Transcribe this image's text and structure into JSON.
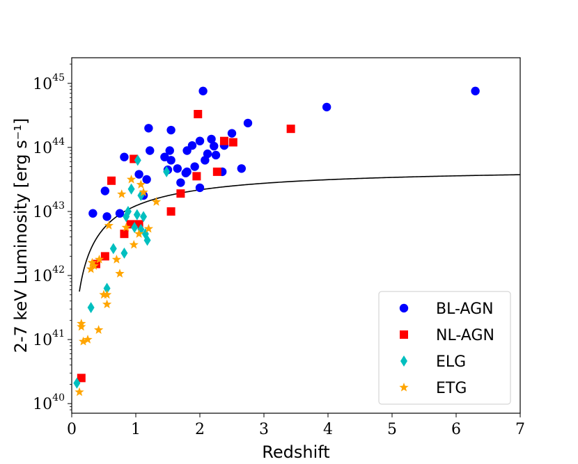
{
  "chart_data": {
    "type": "scatter",
    "title": "",
    "xlabel": "Redshift",
    "ylabel": "2-7 keV Luminosity [erg s⁻¹]",
    "xlim": [
      0,
      7
    ],
    "ylim_log10": [
      39.85,
      45.4
    ],
    "y_scale": "log",
    "x_ticks": [
      "0",
      "1",
      "2",
      "3",
      "4",
      "5",
      "6",
      "7"
    ],
    "y_ticks": [
      {
        "base": "10",
        "exp": "40",
        "log": 40
      },
      {
        "base": "10",
        "exp": "41",
        "log": 41
      },
      {
        "base": "10",
        "exp": "42",
        "log": 42
      },
      {
        "base": "10",
        "exp": "43",
        "log": 43
      },
      {
        "base": "10",
        "exp": "44",
        "log": 44
      },
      {
        "base": "10",
        "exp": "45",
        "log": 45
      }
    ],
    "legend_position": "lower-right",
    "series": [
      {
        "name": "BL-AGN",
        "marker": "circle",
        "color": "#0000ff",
        "points": [
          [
            0.33,
            42.97
          ],
          [
            0.52,
            43.32
          ],
          [
            0.55,
            42.92
          ],
          [
            0.75,
            42.97
          ],
          [
            0.82,
            43.85
          ],
          [
            1.05,
            43.58
          ],
          [
            1.12,
            43.25
          ],
          [
            1.17,
            43.5
          ],
          [
            1.2,
            44.3
          ],
          [
            1.22,
            43.95
          ],
          [
            1.45,
            43.85
          ],
          [
            1.5,
            43.65
          ],
          [
            1.53,
            43.95
          ],
          [
            1.55,
            43.8
          ],
          [
            1.55,
            44.27
          ],
          [
            1.65,
            43.67
          ],
          [
            1.7,
            43.45
          ],
          [
            1.78,
            43.6
          ],
          [
            1.8,
            43.95
          ],
          [
            1.8,
            43.62
          ],
          [
            1.88,
            44.03
          ],
          [
            1.92,
            43.7
          ],
          [
            2.0,
            43.37
          ],
          [
            2.0,
            44.1
          ],
          [
            2.05,
            44.88
          ],
          [
            2.08,
            43.8
          ],
          [
            2.12,
            43.9
          ],
          [
            2.18,
            44.13
          ],
          [
            2.22,
            44.02
          ],
          [
            2.25,
            43.88
          ],
          [
            2.35,
            43.62
          ],
          [
            2.38,
            44.03
          ],
          [
            2.5,
            44.22
          ],
          [
            2.65,
            43.67
          ],
          [
            2.75,
            44.38
          ],
          [
            3.98,
            44.63
          ],
          [
            6.3,
            44.88
          ]
        ]
      },
      {
        "name": "NL-AGN",
        "marker": "square",
        "color": "#ff0000",
        "points": [
          [
            0.15,
            40.4
          ],
          [
            0.38,
            42.18
          ],
          [
            0.52,
            42.3
          ],
          [
            0.62,
            43.48
          ],
          [
            0.82,
            42.65
          ],
          [
            0.92,
            42.8
          ],
          [
            0.97,
            43.82
          ],
          [
            1.05,
            42.8
          ],
          [
            1.55,
            43.0
          ],
          [
            1.7,
            43.28
          ],
          [
            1.95,
            43.55
          ],
          [
            1.97,
            44.52
          ],
          [
            2.27,
            43.62
          ],
          [
            2.38,
            44.1
          ],
          [
            2.52,
            44.08
          ],
          [
            3.42,
            44.29
          ]
        ]
      },
      {
        "name": "ELG",
        "marker": "diamond",
        "color": "#00bfbf",
        "points": [
          [
            0.08,
            40.32
          ],
          [
            0.3,
            41.5
          ],
          [
            0.55,
            41.8
          ],
          [
            0.65,
            42.42
          ],
          [
            0.82,
            42.35
          ],
          [
            0.85,
            42.92
          ],
          [
            0.88,
            43.0
          ],
          [
            0.93,
            43.35
          ],
          [
            0.98,
            42.75
          ],
          [
            1.02,
            42.95
          ],
          [
            1.03,
            43.8
          ],
          [
            1.08,
            43.25
          ],
          [
            1.08,
            42.72
          ],
          [
            1.12,
            42.92
          ],
          [
            1.15,
            42.65
          ],
          [
            1.18,
            42.55
          ],
          [
            1.48,
            43.62
          ]
        ]
      },
      {
        "name": "ETG",
        "marker": "star",
        "color": "#ffa500",
        "points": [
          [
            0.12,
            40.18
          ],
          [
            0.15,
            41.25
          ],
          [
            0.15,
            41.2
          ],
          [
            0.18,
            40.97
          ],
          [
            0.25,
            41.0
          ],
          [
            0.3,
            42.1
          ],
          [
            0.32,
            42.2
          ],
          [
            0.35,
            42.15
          ],
          [
            0.42,
            41.15
          ],
          [
            0.43,
            42.25
          ],
          [
            0.5,
            41.7
          ],
          [
            0.55,
            41.55
          ],
          [
            0.55,
            41.7
          ],
          [
            0.58,
            42.78
          ],
          [
            0.7,
            42.25
          ],
          [
            0.75,
            42.03
          ],
          [
            0.78,
            43.27
          ],
          [
            0.85,
            42.75
          ],
          [
            0.93,
            43.5
          ],
          [
            0.97,
            42.48
          ],
          [
            1.05,
            42.65
          ],
          [
            1.08,
            43.42
          ],
          [
            1.12,
            43.3
          ],
          [
            1.2,
            42.73
          ],
          [
            1.32,
            43.15
          ]
        ]
      }
    ],
    "curve": {
      "name": "sensitivity-limit",
      "color": "#000000",
      "form": "log10 L = 43.69 + 2*log10(z/(1+z))",
      "x_range": [
        0.12,
        7
      ]
    }
  }
}
